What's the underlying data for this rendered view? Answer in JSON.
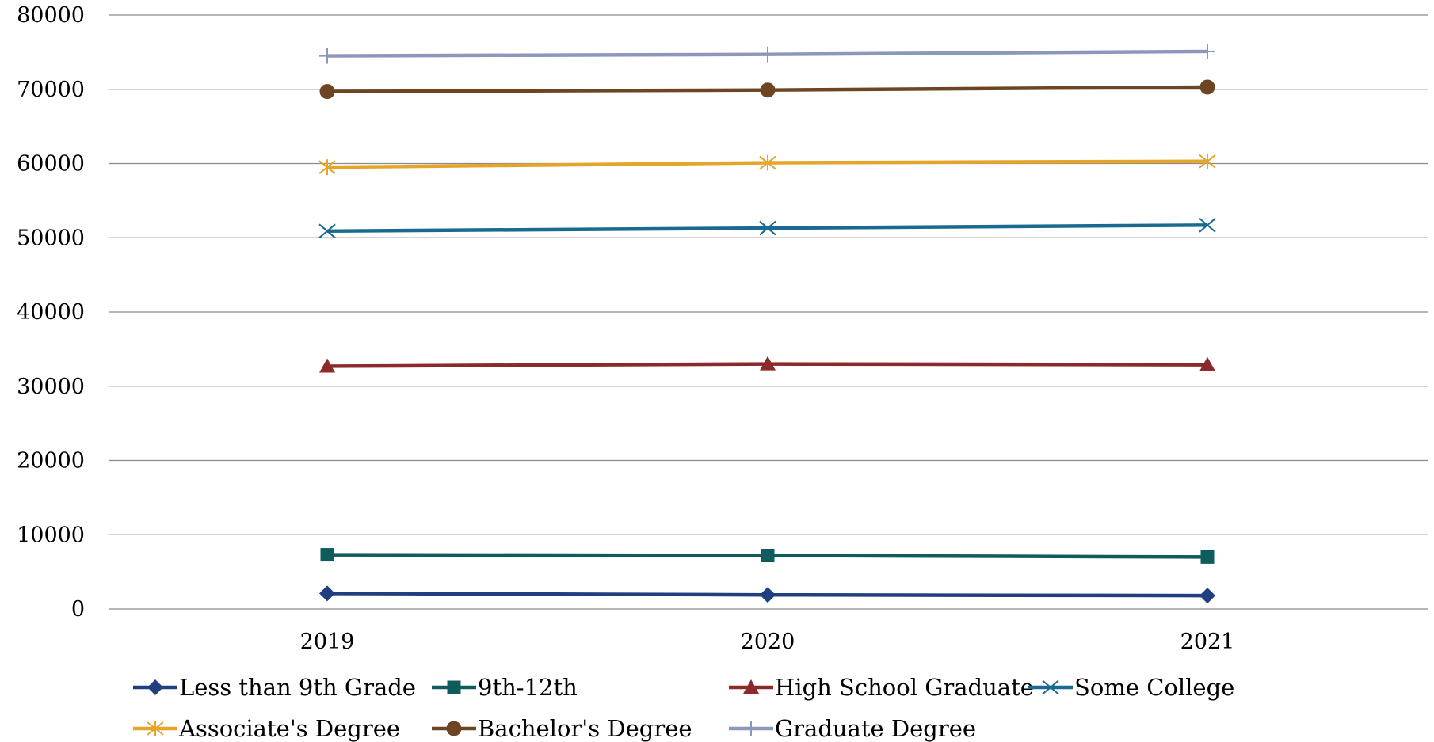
{
  "chart_data": {
    "type": "line",
    "title": "",
    "xlabel": "",
    "ylabel": "",
    "x": [
      "2019",
      "2020",
      "2021"
    ],
    "ylim": [
      0,
      80000
    ],
    "yticks": [
      0,
      10000,
      20000,
      30000,
      40000,
      50000,
      60000,
      70000,
      80000
    ],
    "grid": true,
    "legend_position": "bottom",
    "series": [
      {
        "name": "Less than 9th Grade",
        "values": [
          2100,
          1900,
          1800
        ],
        "color": "#1F3F7F",
        "marker": "diamond"
      },
      {
        "name": "9th-12th",
        "values": [
          7300,
          7200,
          7000
        ],
        "color": "#0F5C5C",
        "marker": "square"
      },
      {
        "name": "High School Graduate",
        "values": [
          32700,
          33000,
          32900
        ],
        "color": "#8B2A2A",
        "marker": "triangle"
      },
      {
        "name": "Some College",
        "values": [
          50900,
          51300,
          51700
        ],
        "color": "#1A6A8F",
        "marker": "x"
      },
      {
        "name": "Associate's Degree",
        "values": [
          59500,
          60100,
          60300
        ],
        "color": "#E5A52A",
        "marker": "star"
      },
      {
        "name": "Bachelor's Degree",
        "values": [
          69700,
          69900,
          70300
        ],
        "color": "#6E4523",
        "marker": "circle"
      },
      {
        "name": "Graduate Degree",
        "values": [
          74500,
          74700,
          75100
        ],
        "color": "#8C97BC",
        "marker": "plus"
      }
    ]
  }
}
